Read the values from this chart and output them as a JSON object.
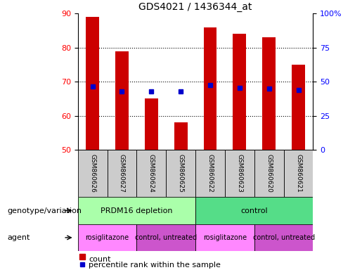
{
  "title": "GDS4021 / 1436344_at",
  "categories": [
    "GSM860626",
    "GSM860627",
    "GSM860624",
    "GSM860625",
    "GSM860622",
    "GSM860623",
    "GSM860620",
    "GSM860621"
  ],
  "bar_values": [
    89,
    79,
    65,
    58,
    86,
    84,
    83,
    75
  ],
  "dot_values_left": [
    68.5,
    67.2,
    67.2,
    67.2,
    69.0,
    68.2,
    68.0,
    67.5
  ],
  "ylim_left": [
    50,
    90
  ],
  "ylim_right": [
    0,
    100
  ],
  "yticks_left": [
    50,
    60,
    70,
    80,
    90
  ],
  "yticks_right": [
    0,
    25,
    50,
    75,
    100
  ],
  "bar_color": "#cc0000",
  "dot_color": "#0000cc",
  "grid_color": "#000000",
  "genotype_labels": [
    "PRDM16 depletion",
    "control"
  ],
  "genotype_color_left": "#aaffaa",
  "genotype_color_right": "#55dd88",
  "agent_labels": [
    "rosiglitazone",
    "control, untreated",
    "rosiglitazone",
    "control, untreated"
  ],
  "agent_color_odd": "#ff88ff",
  "agent_color_even": "#cc55cc",
  "sample_bg_color": "#cccccc",
  "legend_count_label": "count",
  "legend_pct_label": "percentile rank within the sample",
  "row_label_geno": "genotype/variation",
  "row_label_agent": "agent"
}
